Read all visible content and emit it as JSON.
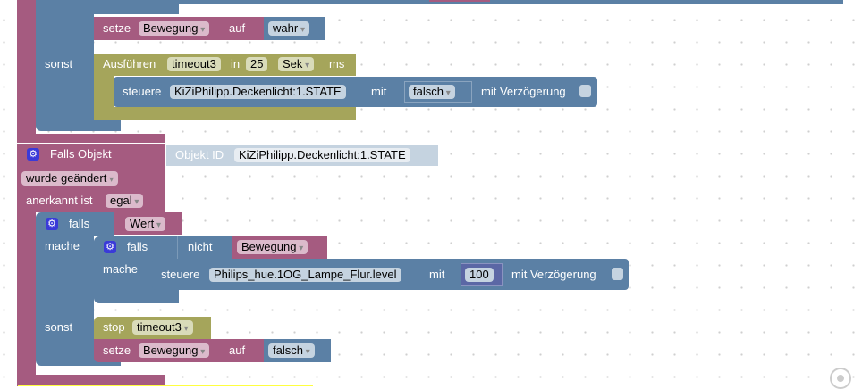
{
  "workspace": {
    "block1": {
      "set_label": "setze",
      "var": "Bewegung",
      "to": "auf",
      "value": "wahr"
    },
    "else1": "sonst",
    "timeout": {
      "label": "Ausführen",
      "name": "timeout3",
      "in": "in",
      "delay": "25",
      "unit": "Sek",
      "ms": "ms"
    },
    "control1": {
      "label": "steuere",
      "object": "KiZiPhilipp.Deckenlicht:1.STATE",
      "with": "mit",
      "value": "falsch",
      "delay_label": "mit Verzögerung"
    },
    "trigger": {
      "label": "Falls Objekt",
      "objid_label": "Objekt ID",
      "objid": "KiZiPhilipp.Deckenlicht:1.STATE",
      "change": "wurde geändert",
      "ack_label": "anerkannt ist",
      "ack": "egal"
    },
    "if1": {
      "if": "falls",
      "cond": "Wert",
      "do": "mache",
      "else": "sonst"
    },
    "if2": {
      "if": "falls",
      "not": "nicht",
      "var": "Bewegung",
      "do": "mache"
    },
    "control2": {
      "label": "steuere",
      "object": "Philips_hue.1OG_Lampe_Flur.level",
      "with": "mit",
      "value": "100",
      "delay_label": "mit Verzögerung"
    },
    "stop": {
      "label": "stop",
      "name": "timeout3"
    },
    "block2": {
      "set_label": "setze",
      "var": "Bewegung",
      "to": "auf",
      "value": "falsch"
    }
  },
  "colors": {
    "variable": "#a55b80",
    "logic": "#5b80a5",
    "timeout": "#a5a55b",
    "math": "#5b67a5",
    "object_id": "#c5d3e0"
  }
}
